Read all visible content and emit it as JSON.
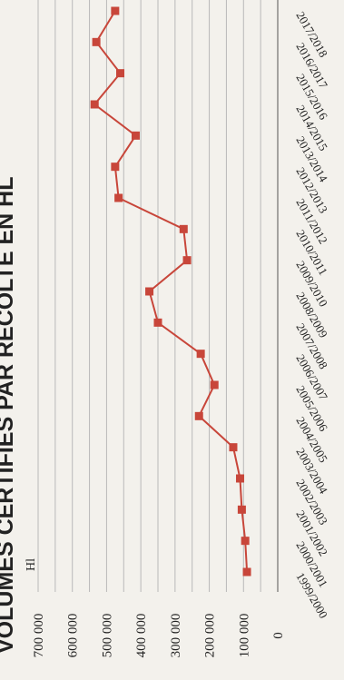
{
  "chart_data": {
    "type": "line",
    "title": "VOLUMES CERTIFIÉS PAR RÉCOLTE EN HL",
    "ylabel": "Hl",
    "xlabel": "",
    "orientation": "rotated-90-clockwise",
    "ylim": [
      0,
      700000
    ],
    "yticks": [
      "0",
      "100 000",
      "200 000",
      "300 000",
      "400 000",
      "500 000",
      "600 000",
      "700 000"
    ],
    "grid": true,
    "line_color": "#c8463a",
    "categories": [
      "1999/2000",
      "2000/2001",
      "2001/2002",
      "2002/2003",
      "2003/2004",
      "2004/2005",
      "2005/2006",
      "2006/2007",
      "2007/2008",
      "2008/2009",
      "2009/2010",
      "2010/2011",
      "2011/2012",
      "2012/2013",
      "2013/2014",
      "2014/2015",
      "2015/2016",
      "2016/2017",
      "2017/2018"
    ],
    "series": [
      {
        "values": [
          90000,
          95000,
          105000,
          110000,
          130000,
          230000,
          185000,
          225000,
          350000,
          375000,
          265000,
          275000,
          465000,
          475000,
          415000,
          535000,
          460000,
          530000,
          475000
        ]
      }
    ]
  }
}
